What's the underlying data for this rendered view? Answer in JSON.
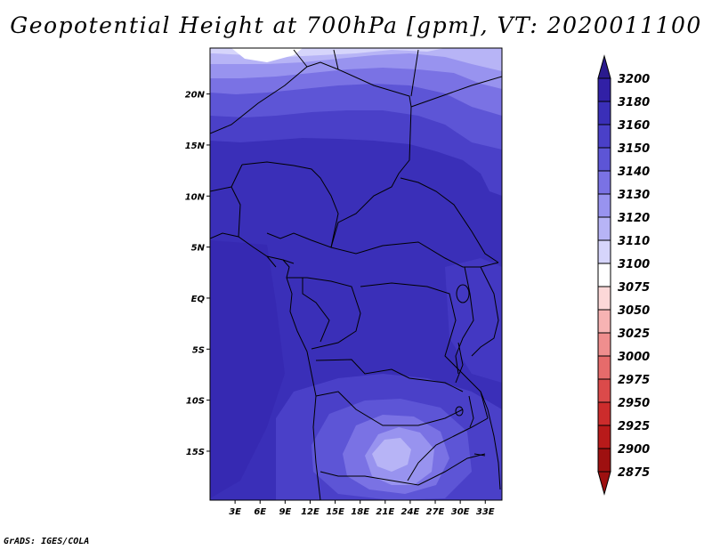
{
  "title": "Geopotential Height at 700hPa [gpm], VT: 2020011100",
  "credit": "GrADS: IGES/COLA",
  "map": {
    "lat_labels": [
      "20N",
      "15N",
      "10N",
      "5N",
      "EQ",
      "5S",
      "10S",
      "15S"
    ],
    "lat_values": [
      20,
      15,
      10,
      5,
      0,
      -5,
      -10,
      -15
    ],
    "lon_labels": [
      "3E",
      "6E",
      "9E",
      "12E",
      "15E",
      "18E",
      "21E",
      "24E",
      "27E",
      "30E",
      "33E"
    ],
    "lon_values": [
      3,
      6,
      9,
      12,
      15,
      18,
      21,
      24,
      27,
      30,
      33
    ],
    "lat_range": [
      -19.8,
      24.5
    ],
    "lon_range": [
      0,
      35
    ]
  },
  "colorbar": {
    "levels": [
      "3200",
      "3180",
      "3160",
      "3150",
      "3140",
      "3130",
      "3120",
      "3110",
      "3100",
      "3075",
      "3050",
      "3025",
      "3000",
      "2975",
      "2950",
      "2925",
      "2900",
      "2875"
    ],
    "colors": [
      "#2a1a8e",
      "#3120a6",
      "#3a2fb8",
      "#4a40c8",
      "#5d55d6",
      "#7a72e4",
      "#9893ef",
      "#b7b4f6",
      "#d6d5fb",
      "#ffffff",
      "#fcd8d8",
      "#f7b3b3",
      "#ef8e8e",
      "#e66b6b",
      "#db4a4a",
      "#cc2c2c",
      "#b81a1a",
      "#9e1010"
    ]
  },
  "field_colors": {
    "base": "#3a2fb8",
    "dark": "#3120a6",
    "l1": "#4a40c8",
    "l2": "#5d55d6",
    "l3": "#7a72e4",
    "l4": "#9893ef",
    "l5": "#b7b4f6",
    "l6": "#d6d5fb",
    "white": "#ffffff"
  }
}
